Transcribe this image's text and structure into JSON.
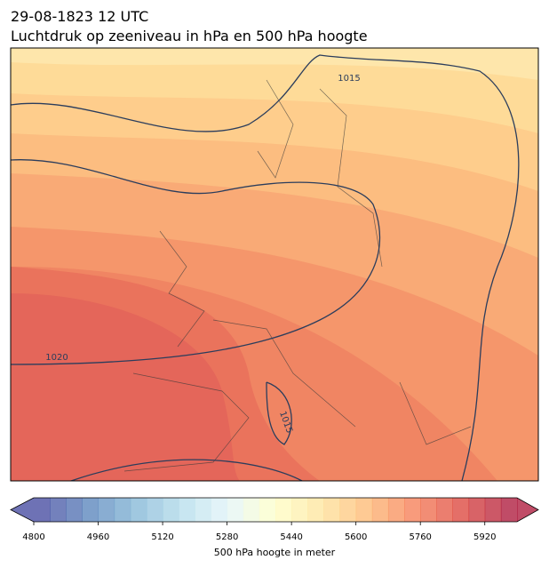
{
  "header": {
    "date": "29-08-1823 12 UTC",
    "title": "Luchtdruk op zeeniveau in hPa en 500 hPa hoogte"
  },
  "map": {
    "isobar_labels": [
      1015,
      1020,
      1015
    ]
  },
  "colorbar": {
    "label": "500 hPa hoogte in meter",
    "lim": [
      4800,
      6000
    ],
    "step": 40,
    "ticks": [
      4800,
      4960,
      5120,
      5280,
      5440,
      5600,
      5760,
      5920
    ],
    "colormap": [
      "#313695",
      "#4575b4",
      "#74add1",
      "#abd9e9",
      "#e0f3f8",
      "#ffffbf",
      "#fee090",
      "#fdae61",
      "#f46d43",
      "#d73027",
      "#a50026"
    ],
    "alpha": 0.7,
    "extend": "both"
  }
}
